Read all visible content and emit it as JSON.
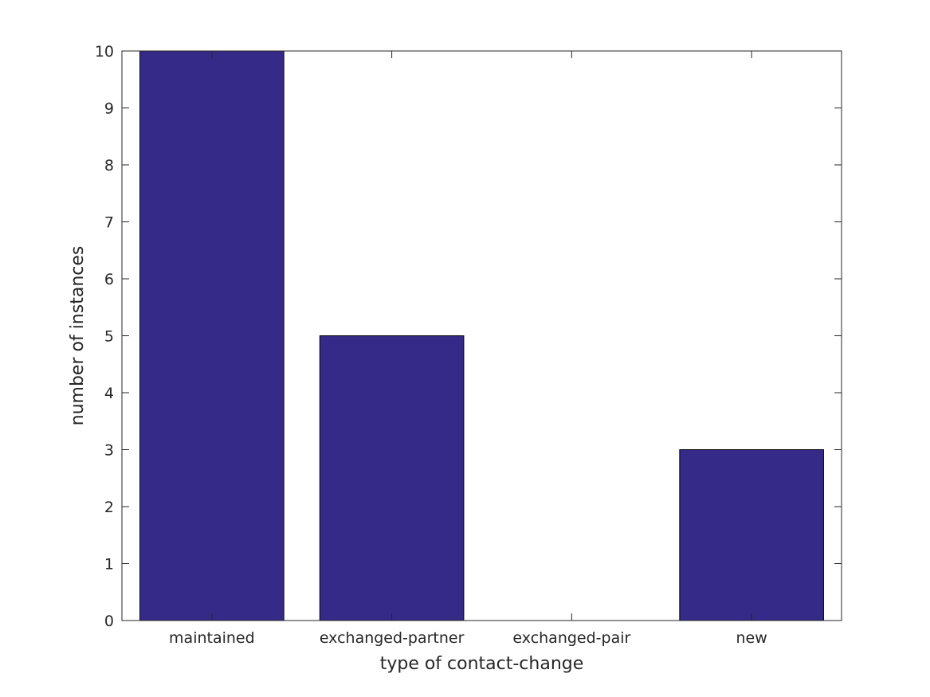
{
  "chart_data": {
    "type": "bar",
    "categories": [
      "maintained",
      "exchanged-partner",
      "exchanged-pair",
      "new"
    ],
    "values": [
      10,
      5,
      0,
      3
    ],
    "title": "",
    "xlabel": "type of contact-change",
    "ylabel": "number of instances",
    "ylim": [
      0,
      10
    ],
    "yticks": [
      "0",
      "1",
      "2",
      "3",
      "4",
      "5",
      "6",
      "7",
      "8",
      "9",
      "10"
    ],
    "grid": false,
    "legend": "none",
    "bar_color": "#352a87",
    "axis_color": "#262626"
  }
}
